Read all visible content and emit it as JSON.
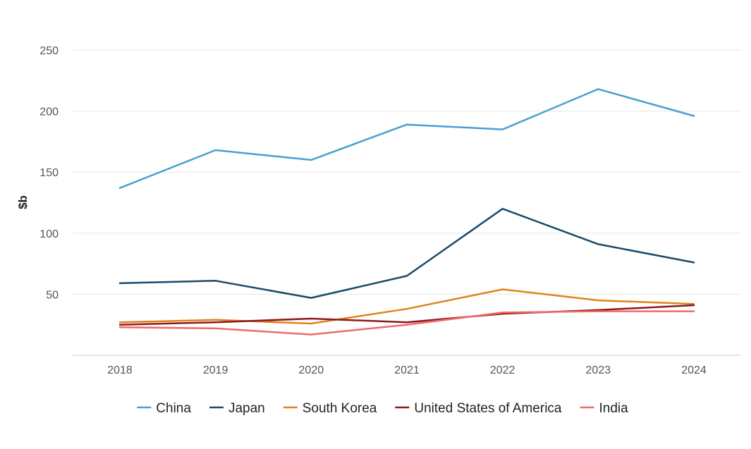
{
  "chart_data": {
    "type": "line",
    "x": [
      "2018",
      "2019",
      "2020",
      "2021",
      "2022",
      "2023",
      "2024"
    ],
    "ylabel": "$b",
    "ylim": [
      0,
      250
    ],
    "yticks": [
      50,
      100,
      150,
      200,
      250
    ],
    "grid": true,
    "legend": "bottom",
    "series": [
      {
        "name": "China",
        "color": "#4a9fd1",
        "values": [
          137,
          168,
          160,
          189,
          185,
          218,
          196
        ]
      },
      {
        "name": "Japan",
        "color": "#1a4a6b",
        "values": [
          59,
          61,
          47,
          65,
          120,
          91,
          76
        ]
      },
      {
        "name": "South Korea",
        "color": "#e0821e",
        "values": [
          27,
          29,
          26,
          38,
          54,
          45,
          42
        ]
      },
      {
        "name": "United States of America",
        "color": "#8b1a1a",
        "values": [
          25,
          27,
          30,
          27,
          34,
          37,
          41
        ]
      },
      {
        "name": "India",
        "color": "#f06a6a",
        "values": [
          23,
          22,
          17,
          25,
          35,
          36,
          36
        ]
      }
    ]
  }
}
